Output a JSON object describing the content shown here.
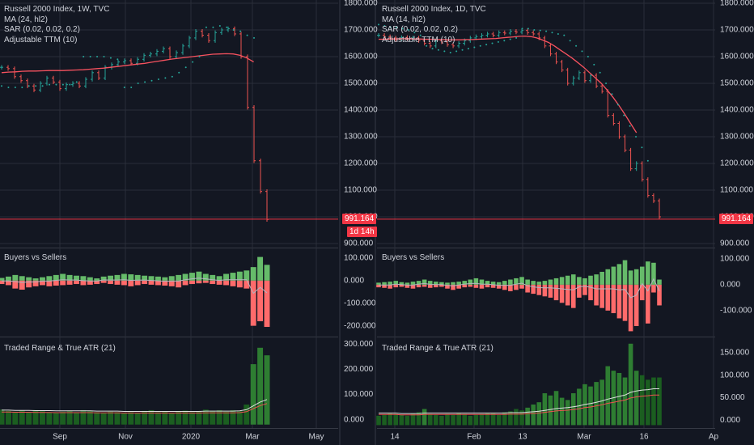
{
  "charts": [
    {
      "id": "left",
      "legend": [
        "Russell 2000 Index, 1W, TVC",
        "MA (24, hl2)",
        "SAR (0.02, 0.02, 0.2)",
        "Adjustable TTM (10)"
      ],
      "price_tag": "991.164",
      "countdown_tag": "1d 14h",
      "x_ticks": [
        "Sep",
        "Nov",
        "2020",
        "Mar",
        "May"
      ],
      "panels": [
        "",
        "Buyers vs Sellers",
        "Traded Range & True ATR (21)"
      ]
    },
    {
      "id": "right",
      "legend": [
        "Russell 2000 Index, 1D, TVC",
        "MA (14, hl2)",
        "SAR (0.02, 0.02, 0.2)",
        "Adjustable TTM (10)"
      ],
      "price_tag": "991.164",
      "x_ticks": [
        "14",
        "Feb",
        "13",
        "Mar",
        "16",
        "Ap"
      ],
      "panels": [
        "",
        "Buyers vs Sellers",
        "Traded Range & True ATR (21)"
      ]
    }
  ],
  "colors": {
    "bg": "#131722",
    "grid": "#2a2e39",
    "up": "#26a69a",
    "down": "#ef5350",
    "ma": "#f7525f",
    "sar": "#26a69a",
    "bar_up": "#66bb6a",
    "bar_dn": "#ff6b6b",
    "atr_bar": "#1b5e20",
    "atr_hi": "#2e7d32",
    "tag_red": "#f23645"
  },
  "chart_data": [
    {
      "type": "ohlc",
      "title": "Russell 2000 Index, 1W, TVC",
      "x_ticks": [
        "Sep",
        "Nov",
        "2020",
        "Mar",
        "May"
      ],
      "y_ticks": [
        "1800.000",
        "1700.000",
        "1600.000",
        "1500.000",
        "1400.000",
        "1300.000",
        "1200.000",
        "1100.000",
        "1000.000",
        "900.000"
      ],
      "ylim": [
        900,
        1800
      ],
      "last_price": 991.164,
      "close": [
        1560,
        1555,
        1525,
        1510,
        1490,
        1475,
        1500,
        1520,
        1505,
        1480,
        1495,
        1500,
        1490,
        1515,
        1540,
        1520,
        1560,
        1570,
        1580,
        1585,
        1575,
        1590,
        1605,
        1610,
        1620,
        1630,
        1600,
        1615,
        1640,
        1670,
        1695,
        1680,
        1660,
        1690,
        1700,
        1705,
        1685,
        1600,
        1410,
        1210,
        1095,
        990
      ],
      "ma_24_hl2": [
        1540,
        1542,
        1543,
        1545,
        1546,
        1546,
        1547,
        1548,
        1548,
        1548,
        1549,
        1550,
        1551,
        1553,
        1555,
        1557,
        1560,
        1563,
        1566,
        1569,
        1572,
        1575,
        1579,
        1583,
        1587,
        1591,
        1594,
        1597,
        1600,
        1603,
        1606,
        1609,
        1610,
        1611,
        1610,
        1605,
        1595,
        1580
      ],
      "sar_values": [
        1490,
        1485,
        1485,
        1485,
        1490,
        1490,
        1490,
        1495,
        1495,
        1495,
        1495,
        1505,
        1600,
        1600,
        1600,
        1600,
        1595,
        1590,
        1485,
        1485,
        1500,
        1505,
        1510,
        1515,
        1520,
        1525,
        1540,
        1560,
        1580,
        1600,
        1710,
        1710,
        1715,
        1710,
        1700,
        1695,
        1680,
        1670
      ],
      "buyers_vs_sellers": {
        "y_ticks": [
          "100.000",
          "0.000",
          "-100.000",
          "-200.000"
        ],
        "ylim": [
          -230,
          125
        ],
        "buyers": [
          12,
          18,
          25,
          20,
          15,
          10,
          15,
          20,
          25,
          30,
          25,
          22,
          20,
          15,
          10,
          18,
          22,
          25,
          30,
          28,
          25,
          22,
          20,
          18,
          15,
          20,
          25,
          30,
          35,
          40,
          30,
          25,
          20,
          30,
          35,
          40,
          45,
          60,
          105,
          70
        ],
        "sellers": [
          -15,
          -20,
          -35,
          -40,
          -30,
          -25,
          -20,
          -25,
          -22,
          -20,
          -18,
          -15,
          -20,
          -18,
          -15,
          -10,
          -15,
          -18,
          -20,
          -25,
          -20,
          -15,
          -18,
          -20,
          -22,
          -25,
          -30,
          -20,
          -15,
          -12,
          -10,
          -15,
          -18,
          -20,
          -25,
          -30,
          -35,
          -200,
          -180,
          -205
        ]
      },
      "traded_range_atr": {
        "y_ticks": [
          "300.000",
          "200.000",
          "100.000",
          "0.000"
        ],
        "ylim": [
          -20,
          310
        ],
        "range": [
          40,
          35,
          32,
          36,
          30,
          38,
          34,
          30,
          28,
          32,
          35,
          30,
          38,
          34,
          30,
          28,
          32,
          30,
          26,
          30,
          28,
          35,
          38,
          30,
          32,
          28,
          34,
          36,
          30,
          32,
          40,
          36,
          38,
          32,
          38,
          34,
          60,
          220,
          285,
          255
        ],
        "atr": [
          38,
          38,
          37,
          37,
          37,
          36,
          36,
          36,
          35,
          35,
          35,
          35,
          35,
          35,
          34,
          34,
          34,
          34,
          33,
          33,
          33,
          33,
          33,
          33,
          33,
          33,
          33,
          33,
          33,
          33,
          34,
          34,
          34,
          34,
          34,
          35,
          40,
          55,
          70,
          80
        ]
      }
    },
    {
      "type": "ohlc",
      "title": "Russell 2000 Index, 1D, TVC",
      "x_ticks": [
        "14",
        "Feb",
        "13",
        "Mar",
        "16",
        "Ap"
      ],
      "y_ticks": [
        "1800.000",
        "1700.000",
        "1600.000",
        "1500.000",
        "1400.000",
        "1300.000",
        "1200.000",
        "1100.000",
        "1000.000",
        "900.000"
      ],
      "ylim": [
        900,
        1800
      ],
      "last_price": 991.164,
      "close": [
        1680,
        1675,
        1670,
        1665,
        1672,
        1668,
        1670,
        1660,
        1650,
        1640,
        1660,
        1655,
        1645,
        1640,
        1650,
        1660,
        1670,
        1675,
        1680,
        1685,
        1680,
        1690,
        1688,
        1695,
        1692,
        1698,
        1690,
        1685,
        1670,
        1640,
        1610,
        1580,
        1550,
        1500,
        1520,
        1540,
        1510,
        1530,
        1490,
        1470,
        1380,
        1350,
        1300,
        1250,
        1180,
        1200,
        1140,
        1080,
        1060,
        1000
      ],
      "ma_14_hl2": [
        1665,
        1665,
        1666,
        1666,
        1667,
        1667,
        1666,
        1666,
        1665,
        1665,
        1664,
        1664,
        1663,
        1663,
        1663,
        1664,
        1664,
        1665,
        1666,
        1667,
        1668,
        1670,
        1672,
        1674,
        1676,
        1677,
        1675,
        1670,
        1662,
        1653,
        1640,
        1625,
        1610,
        1595,
        1578,
        1560,
        1540,
        1520,
        1500,
        1475,
        1448,
        1418,
        1385,
        1350,
        1315
      ],
      "sar_values": [
        1720,
        1715,
        1710,
        1710,
        1705,
        1700,
        1690,
        1680,
        1640,
        1630,
        1625,
        1620,
        1615,
        1620,
        1625,
        1630,
        1635,
        1640,
        1645,
        1650,
        1655,
        1660,
        1665,
        1670,
        1705,
        1705,
        1700,
        1698,
        1695,
        1690,
        1685,
        1680,
        1660,
        1640,
        1620,
        1600,
        1570,
        1540,
        1500,
        1460,
        1420,
        1380,
        1340,
        1300,
        1260,
        1210
      ],
      "buyers_vs_sellers": {
        "y_ticks": [
          "100.000",
          "0.000",
          "-100.000"
        ],
        "ylim": [
          -185,
          125
        ],
        "buyers": [
          8,
          10,
          12,
          15,
          10,
          8,
          12,
          15,
          20,
          15,
          12,
          10,
          8,
          10,
          12,
          15,
          20,
          25,
          20,
          15,
          12,
          10,
          15,
          20,
          25,
          30,
          20,
          15,
          12,
          15,
          20,
          25,
          30,
          35,
          40,
          30,
          25,
          35,
          40,
          50,
          60,
          70,
          80,
          95,
          55,
          60,
          70,
          90,
          85,
          20
        ],
        "sellers": [
          -10,
          -12,
          -15,
          -10,
          -8,
          -12,
          -15,
          -10,
          -8,
          -12,
          -10,
          -8,
          -15,
          -20,
          -15,
          -10,
          -8,
          -12,
          -15,
          -10,
          -12,
          -15,
          -20,
          -25,
          -20,
          -15,
          -30,
          -35,
          -40,
          -45,
          -50,
          -60,
          -70,
          -80,
          -90,
          -50,
          -40,
          -60,
          -80,
          -90,
          -100,
          -110,
          -130,
          -140,
          -180,
          -160,
          -60,
          -150,
          -30,
          -80
        ]
      },
      "traded_range_atr": {
        "y_ticks": [
          "150.000",
          "100.000",
          "50.000",
          "0.000"
        ],
        "ylim": [
          -10,
          175
        ],
        "range": [
          10,
          12,
          15,
          14,
          12,
          10,
          15,
          18,
          25,
          14,
          12,
          10,
          14,
          12,
          16,
          14,
          10,
          12,
          14,
          16,
          15,
          12,
          18,
          20,
          25,
          22,
          28,
          35,
          40,
          60,
          55,
          65,
          50,
          45,
          60,
          70,
          80,
          75,
          85,
          90,
          120,
          110,
          105,
          95,
          170,
          110,
          100,
          90,
          95,
          95
        ],
        "atr": [
          16,
          16,
          16,
          16,
          15,
          15,
          15,
          15,
          16,
          16,
          16,
          16,
          16,
          16,
          16,
          16,
          16,
          16,
          16,
          16,
          16,
          16,
          16,
          17,
          17,
          17,
          18,
          19,
          20,
          22,
          24,
          26,
          27,
          28,
          30,
          32,
          35,
          37,
          40,
          43,
          47,
          50,
          53,
          56,
          62,
          65,
          67,
          68,
          70,
          70
        ]
      }
    }
  ]
}
